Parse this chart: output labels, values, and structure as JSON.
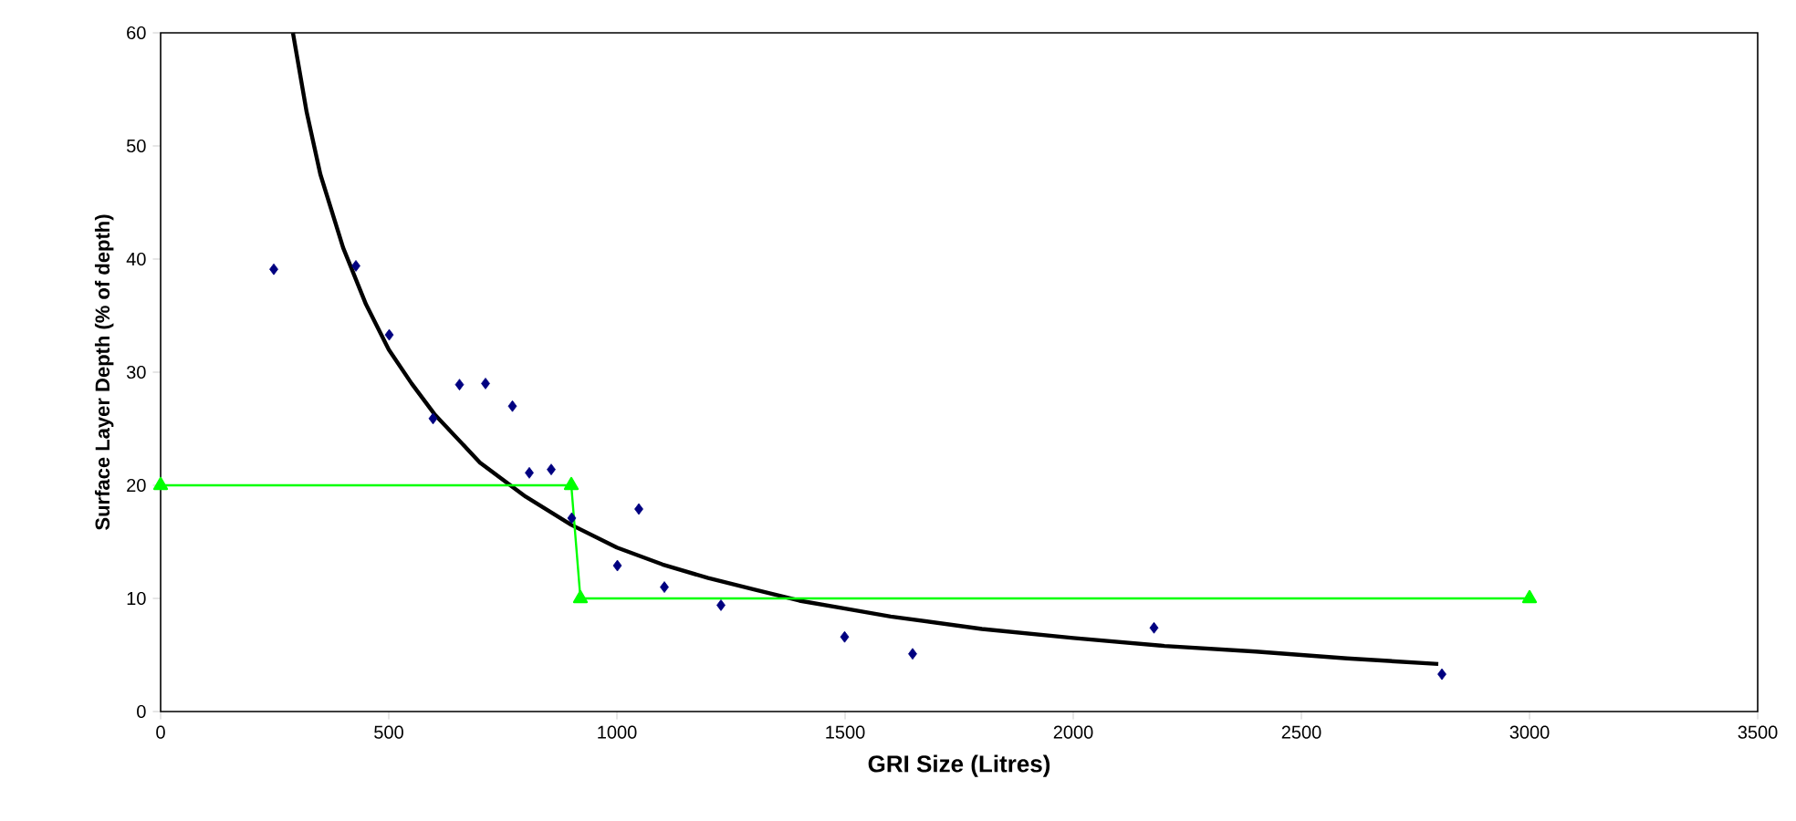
{
  "chart_data": {
    "type": "scatter",
    "xlabel": "GRI Size (Litres)",
    "ylabel": "Surface Layer Depth (% of depth)",
    "xlim": [
      0,
      3500
    ],
    "ylim": [
      0,
      60
    ],
    "xticks": [
      0,
      500,
      1000,
      1500,
      2000,
      2500,
      3000,
      3500
    ],
    "yticks": [
      0,
      10,
      20,
      30,
      40,
      50,
      60
    ],
    "grid": false,
    "series": [
      {
        "color": "#000080",
        "marker": "diamond",
        "x": [
          248,
          428,
          501,
          597,
          655,
          712,
          771,
          808,
          856,
          901,
          1001,
          1048,
          1104,
          1228,
          1499,
          1648,
          2177,
          2808
        ],
        "values": [
          39.1,
          39.4,
          33.3,
          25.9,
          28.9,
          29.0,
          27.0,
          21.1,
          21.4,
          17.1,
          12.9,
          17.9,
          11.0,
          9.4,
          6.6,
          5.1,
          7.4,
          3.3
        ]
      },
      {
        "type": "line",
        "color": "#000000",
        "marker": "none",
        "x": [
          290,
          320,
          350,
          400,
          450,
          500,
          550,
          600,
          700,
          800,
          900,
          1000,
          1100,
          1200,
          1300,
          1400,
          1500,
          1600,
          1800,
          2000,
          2200,
          2400,
          2600,
          2800
        ],
        "values": [
          60,
          53,
          47.5,
          41,
          36,
          32,
          29,
          26.3,
          22,
          19,
          16.5,
          14.5,
          13,
          11.8,
          10.8,
          9.8,
          9.1,
          8.4,
          7.3,
          6.5,
          5.8,
          5.3,
          4.7,
          4.2
        ]
      },
      {
        "type": "line",
        "color": "#00ff00",
        "marker": "triangle",
        "x": [
          0,
          900,
          920,
          3000
        ],
        "values": [
          20,
          20,
          10,
          10
        ]
      }
    ]
  }
}
